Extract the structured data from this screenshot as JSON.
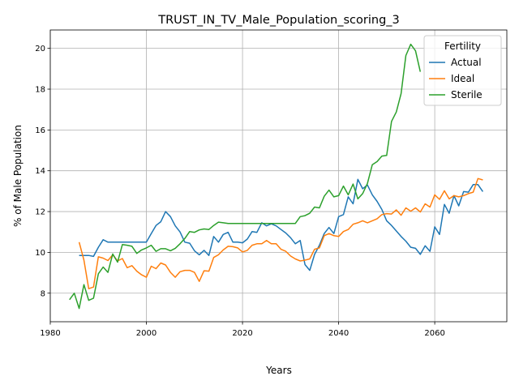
{
  "chart_data": {
    "type": "line",
    "title": "TRUST_IN_TV_Male_Population_scoring_3",
    "xlabel": "Years",
    "ylabel": "% of Male Population",
    "xlim": [
      1980,
      2075
    ],
    "ylim": [
      6.6,
      20.9
    ],
    "xticks": [
      1980,
      2000,
      2020,
      2040,
      2060
    ],
    "yticks": [
      8,
      10,
      12,
      14,
      16,
      18,
      20
    ],
    "grid": true,
    "legend": {
      "title": "Fertility",
      "position": "top-right"
    },
    "series": [
      {
        "name": "Actual",
        "color": "#1f77b4",
        "points": [
          [
            1986,
            9.85
          ],
          [
            1987,
            9.85
          ],
          [
            1988,
            9.85
          ],
          [
            1989,
            9.8
          ],
          [
            1990,
            10.25
          ],
          [
            1991,
            10.62
          ],
          [
            1992,
            10.5
          ],
          [
            1993,
            10.5
          ],
          [
            1994,
            10.5
          ],
          [
            1995,
            10.5
          ],
          [
            1996,
            10.5
          ],
          [
            1997,
            10.5
          ],
          [
            1998,
            10.5
          ],
          [
            1999,
            10.5
          ],
          [
            2000,
            10.5
          ],
          [
            2001,
            10.92
          ],
          [
            2002,
            11.32
          ],
          [
            2003,
            11.5
          ],
          [
            2004,
            12.0
          ],
          [
            2005,
            11.75
          ],
          [
            2006,
            11.3
          ],
          [
            2007,
            11.0
          ],
          [
            2008,
            10.5
          ],
          [
            2009,
            10.45
          ],
          [
            2010,
            10.08
          ],
          [
            2011,
            9.88
          ],
          [
            2012,
            10.1
          ],
          [
            2013,
            9.85
          ],
          [
            2014,
            10.78
          ],
          [
            2015,
            10.5
          ],
          [
            2016,
            10.88
          ],
          [
            2017,
            10.98
          ],
          [
            2018,
            10.5
          ],
          [
            2019,
            10.5
          ],
          [
            2020,
            10.47
          ],
          [
            2021,
            10.65
          ],
          [
            2022,
            11.02
          ],
          [
            2023,
            10.98
          ],
          [
            2024,
            11.45
          ],
          [
            2025,
            11.3
          ],
          [
            2026,
            11.4
          ],
          [
            2027,
            11.3
          ],
          [
            2028,
            11.12
          ],
          [
            2029,
            10.95
          ],
          [
            2030,
            10.72
          ],
          [
            2031,
            10.42
          ],
          [
            2032,
            10.58
          ],
          [
            2033,
            9.4
          ],
          [
            2034,
            9.12
          ],
          [
            2035,
            9.9
          ],
          [
            2036,
            10.35
          ],
          [
            2037,
            10.92
          ],
          [
            2038,
            11.22
          ],
          [
            2039,
            10.92
          ],
          [
            2040,
            11.75
          ],
          [
            2041,
            11.85
          ],
          [
            2042,
            12.72
          ],
          [
            2043,
            12.38
          ],
          [
            2044,
            13.58
          ],
          [
            2045,
            13.12
          ],
          [
            2046,
            13.3
          ],
          [
            2047,
            12.82
          ],
          [
            2048,
            12.5
          ],
          [
            2049,
            12.1
          ],
          [
            2050,
            11.55
          ],
          [
            2051,
            11.32
          ],
          [
            2052,
            11.05
          ],
          [
            2053,
            10.78
          ],
          [
            2054,
            10.55
          ],
          [
            2055,
            10.25
          ],
          [
            2056,
            10.2
          ],
          [
            2057,
            9.9
          ],
          [
            2058,
            10.32
          ],
          [
            2059,
            10.05
          ],
          [
            2060,
            11.25
          ],
          [
            2061,
            10.88
          ],
          [
            2062,
            12.35
          ],
          [
            2063,
            11.92
          ],
          [
            2064,
            12.78
          ],
          [
            2065,
            12.28
          ],
          [
            2066,
            12.98
          ],
          [
            2067,
            12.95
          ],
          [
            2068,
            13.32
          ],
          [
            2069,
            13.32
          ],
          [
            2070,
            12.98
          ]
        ]
      },
      {
        "name": "Ideal",
        "color": "#ff7f0e",
        "points": [
          [
            1986,
            10.5
          ],
          [
            1987,
            9.62
          ],
          [
            1988,
            8.22
          ],
          [
            1989,
            8.3
          ],
          [
            1990,
            9.78
          ],
          [
            1991,
            9.72
          ],
          [
            1992,
            9.6
          ],
          [
            1993,
            9.88
          ],
          [
            1994,
            9.58
          ],
          [
            1995,
            9.7
          ],
          [
            1996,
            9.25
          ],
          [
            1997,
            9.35
          ],
          [
            1998,
            9.08
          ],
          [
            1999,
            8.9
          ],
          [
            2000,
            8.78
          ],
          [
            2001,
            9.32
          ],
          [
            2002,
            9.2
          ],
          [
            2003,
            9.48
          ],
          [
            2004,
            9.38
          ],
          [
            2005,
            9.02
          ],
          [
            2006,
            8.78
          ],
          [
            2007,
            9.05
          ],
          [
            2008,
            9.12
          ],
          [
            2009,
            9.12
          ],
          [
            2010,
            9.02
          ],
          [
            2011,
            8.58
          ],
          [
            2012,
            9.1
          ],
          [
            2013,
            9.08
          ],
          [
            2014,
            9.75
          ],
          [
            2015,
            9.88
          ],
          [
            2016,
            10.12
          ],
          [
            2017,
            10.3
          ],
          [
            2018,
            10.28
          ],
          [
            2019,
            10.22
          ],
          [
            2020,
            10.02
          ],
          [
            2021,
            10.1
          ],
          [
            2022,
            10.35
          ],
          [
            2023,
            10.42
          ],
          [
            2024,
            10.42
          ],
          [
            2025,
            10.58
          ],
          [
            2026,
            10.42
          ],
          [
            2027,
            10.42
          ],
          [
            2028,
            10.15
          ],
          [
            2029,
            10.05
          ],
          [
            2030,
            9.82
          ],
          [
            2031,
            9.68
          ],
          [
            2032,
            9.58
          ],
          [
            2033,
            9.62
          ],
          [
            2034,
            9.68
          ],
          [
            2035,
            10.15
          ],
          [
            2036,
            10.22
          ],
          [
            2037,
            10.82
          ],
          [
            2038,
            10.92
          ],
          [
            2039,
            10.82
          ],
          [
            2040,
            10.78
          ],
          [
            2041,
            11.02
          ],
          [
            2042,
            11.12
          ],
          [
            2043,
            11.38
          ],
          [
            2044,
            11.45
          ],
          [
            2045,
            11.55
          ],
          [
            2046,
            11.45
          ],
          [
            2047,
            11.55
          ],
          [
            2048,
            11.65
          ],
          [
            2049,
            11.85
          ],
          [
            2050,
            11.9
          ],
          [
            2051,
            11.88
          ],
          [
            2052,
            12.08
          ],
          [
            2053,
            11.82
          ],
          [
            2054,
            12.18
          ],
          [
            2055,
            12.02
          ],
          [
            2056,
            12.18
          ],
          [
            2057,
            11.98
          ],
          [
            2058,
            12.38
          ],
          [
            2059,
            12.22
          ],
          [
            2060,
            12.82
          ],
          [
            2061,
            12.6
          ],
          [
            2062,
            13.02
          ],
          [
            2063,
            12.62
          ],
          [
            2064,
            12.78
          ],
          [
            2065,
            12.72
          ],
          [
            2066,
            12.78
          ],
          [
            2067,
            12.88
          ],
          [
            2068,
            12.95
          ],
          [
            2069,
            13.62
          ],
          [
            2070,
            13.55
          ]
        ]
      },
      {
        "name": "Sterile",
        "color": "#2ca02c",
        "points": [
          [
            1984,
            7.68
          ],
          [
            1985,
            8.0
          ],
          [
            1986,
            7.25
          ],
          [
            1987,
            8.42
          ],
          [
            1988,
            7.65
          ],
          [
            1989,
            7.75
          ],
          [
            1990,
            8.95
          ],
          [
            1991,
            9.28
          ],
          [
            1992,
            9.02
          ],
          [
            1993,
            9.92
          ],
          [
            1994,
            9.52
          ],
          [
            1995,
            10.38
          ],
          [
            1996,
            10.35
          ],
          [
            1997,
            10.3
          ],
          [
            1998,
            9.95
          ],
          [
            1999,
            10.12
          ],
          [
            2000,
            10.22
          ],
          [
            2001,
            10.35
          ],
          [
            2002,
            10.05
          ],
          [
            2003,
            10.18
          ],
          [
            2004,
            10.18
          ],
          [
            2005,
            10.08
          ],
          [
            2006,
            10.2
          ],
          [
            2007,
            10.42
          ],
          [
            2008,
            10.68
          ],
          [
            2009,
            11.02
          ],
          [
            2010,
            10.98
          ],
          [
            2011,
            11.1
          ],
          [
            2012,
            11.15
          ],
          [
            2013,
            11.12
          ],
          [
            2014,
            11.32
          ],
          [
            2015,
            11.48
          ],
          [
            2016,
            11.45
          ],
          [
            2017,
            11.42
          ],
          [
            2018,
            11.42
          ],
          [
            2019,
            11.42
          ],
          [
            2020,
            11.42
          ],
          [
            2021,
            11.42
          ],
          [
            2022,
            11.42
          ],
          [
            2023,
            11.42
          ],
          [
            2024,
            11.42
          ],
          [
            2025,
            11.42
          ],
          [
            2026,
            11.42
          ],
          [
            2027,
            11.42
          ],
          [
            2028,
            11.42
          ],
          [
            2029,
            11.42
          ],
          [
            2030,
            11.42
          ],
          [
            2031,
            11.42
          ],
          [
            2032,
            11.75
          ],
          [
            2033,
            11.8
          ],
          [
            2034,
            11.92
          ],
          [
            2035,
            12.22
          ],
          [
            2036,
            12.18
          ],
          [
            2037,
            12.75
          ],
          [
            2038,
            13.05
          ],
          [
            2039,
            12.72
          ],
          [
            2040,
            12.78
          ],
          [
            2041,
            13.25
          ],
          [
            2042,
            12.82
          ],
          [
            2043,
            13.35
          ],
          [
            2044,
            12.62
          ],
          [
            2045,
            12.88
          ],
          [
            2046,
            13.38
          ],
          [
            2047,
            14.3
          ],
          [
            2048,
            14.45
          ],
          [
            2049,
            14.72
          ],
          [
            2050,
            14.75
          ],
          [
            2051,
            16.42
          ],
          [
            2052,
            16.88
          ],
          [
            2053,
            17.78
          ],
          [
            2054,
            19.65
          ],
          [
            2055,
            20.2
          ],
          [
            2056,
            19.88
          ],
          [
            2057,
            18.85
          ]
        ]
      }
    ]
  }
}
